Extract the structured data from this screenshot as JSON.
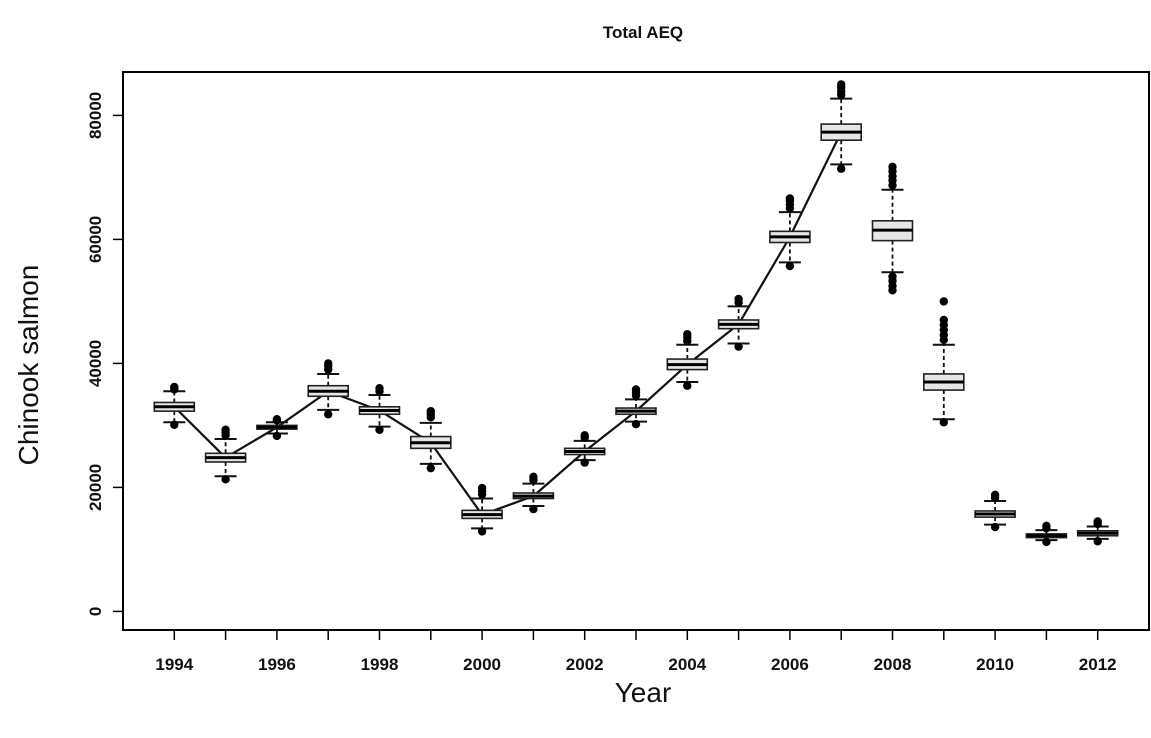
{
  "chart_data": {
    "type": "box",
    "title": "Total AEQ",
    "xlabel": "Year",
    "ylabel": "Chinook salmon",
    "x_tick_labels": [
      "1994",
      "1996",
      "1998",
      "2000",
      "2002",
      "2004",
      "2006",
      "2008",
      "2010",
      "2012"
    ],
    "y_tick_labels": [
      "0",
      "20000",
      "40000",
      "60000",
      "80000"
    ],
    "xlim": [
      1993,
      2013
    ],
    "ylim": [
      -3000,
      87000
    ],
    "grid": false,
    "legend": "none",
    "boxes": [
      {
        "year": 1994,
        "q1": 32300,
        "median": 33000,
        "q3": 33700,
        "wlo": 30500,
        "whi": 35500,
        "outliers": [
          30100,
          35800,
          36200
        ]
      },
      {
        "year": 1995,
        "q1": 24100,
        "median": 24800,
        "q3": 25500,
        "wlo": 21800,
        "whi": 27800,
        "outliers": [
          21300,
          28400,
          28900,
          29300
        ]
      },
      {
        "year": 1996,
        "q1": 29400,
        "median": 29700,
        "q3": 30000,
        "wlo": 28700,
        "whi": 30500,
        "outliers": [
          28300,
          30800,
          31000
        ]
      },
      {
        "year": 1997,
        "q1": 34700,
        "median": 35500,
        "q3": 36400,
        "wlo": 32500,
        "whi": 38300,
        "outliers": [
          31800,
          39000,
          39600,
          40000
        ]
      },
      {
        "year": 1998,
        "q1": 31800,
        "median": 32400,
        "q3": 33000,
        "wlo": 29800,
        "whi": 34900,
        "outliers": [
          29300,
          35500,
          36000
        ]
      },
      {
        "year": 1999,
        "q1": 26300,
        "median": 27200,
        "q3": 28200,
        "wlo": 23800,
        "whi": 30400,
        "outliers": [
          23100,
          31300,
          31800,
          32300
        ]
      },
      {
        "year": 2000,
        "q1": 15000,
        "median": 15600,
        "q3": 16300,
        "wlo": 13400,
        "whi": 18200,
        "outliers": [
          12900,
          18900,
          19400,
          19900
        ]
      },
      {
        "year": 2001,
        "q1": 18200,
        "median": 18600,
        "q3": 19100,
        "wlo": 17000,
        "whi": 20600,
        "outliers": [
          16500,
          21200,
          21700
        ]
      },
      {
        "year": 2002,
        "q1": 25300,
        "median": 25800,
        "q3": 26300,
        "wlo": 24400,
        "whi": 27500,
        "outliers": [
          24000,
          28000,
          28400
        ]
      },
      {
        "year": 2003,
        "q1": 31800,
        "median": 32300,
        "q3": 32800,
        "wlo": 30600,
        "whi": 34200,
        "outliers": [
          30200,
          34800,
          35300,
          35800
        ]
      },
      {
        "year": 2004,
        "q1": 39000,
        "median": 39800,
        "q3": 40700,
        "wlo": 37000,
        "whi": 43000,
        "outliers": [
          36400,
          43600,
          44200,
          44700
        ]
      },
      {
        "year": 2005,
        "q1": 45600,
        "median": 46300,
        "q3": 47000,
        "wlo": 43200,
        "whi": 49200,
        "outliers": [
          42700,
          49800,
          50400
        ]
      },
      {
        "year": 2006,
        "q1": 59500,
        "median": 60400,
        "q3": 61300,
        "wlo": 56300,
        "whi": 64400,
        "outliers": [
          55700,
          65000,
          65600,
          66200,
          66600
        ]
      },
      {
        "year": 2007,
        "q1": 76000,
        "median": 77300,
        "q3": 78600,
        "wlo": 72100,
        "whi": 82700,
        "outliers": [
          71400,
          83300,
          83900,
          84500,
          85000
        ]
      },
      {
        "year": 2008,
        "q1": 59800,
        "median": 61500,
        "q3": 63000,
        "wlo": 54700,
        "whi": 68000,
        "outliers": [
          54000,
          53300,
          52500,
          51800,
          68700,
          69500,
          70200,
          71000,
          71700
        ]
      },
      {
        "year": 2009,
        "q1": 35700,
        "median": 37000,
        "q3": 38300,
        "wlo": 31000,
        "whi": 43000,
        "outliers": [
          30500,
          43800,
          44600,
          45400,
          46200,
          47000,
          50000
        ]
      },
      {
        "year": 2010,
        "q1": 15200,
        "median": 15700,
        "q3": 16200,
        "wlo": 14000,
        "whi": 17800,
        "outliers": [
          13600,
          18300,
          18800
        ]
      },
      {
        "year": 2011,
        "q1": 11900,
        "median": 12200,
        "q3": 12500,
        "wlo": 11500,
        "whi": 13100,
        "outliers": [
          11200,
          13400,
          13800
        ]
      },
      {
        "year": 2012,
        "q1": 12200,
        "median": 12600,
        "q3": 13000,
        "wlo": 11700,
        "whi": 13700,
        "outliers": [
          11300,
          14100,
          14500
        ]
      }
    ],
    "line": [
      [
        1994,
        33000
      ],
      [
        1995,
        24800
      ],
      [
        1996,
        29700
      ],
      [
        1997,
        35500
      ],
      [
        1998,
        32400
      ],
      [
        1999,
        27200
      ],
      [
        2000,
        15600
      ],
      [
        2001,
        18600
      ],
      [
        2002,
        25800
      ],
      [
        2003,
        32300
      ],
      [
        2004,
        39800
      ],
      [
        2005,
        46300
      ],
      [
        2006,
        60400
      ],
      [
        2007,
        77300
      ]
    ]
  }
}
